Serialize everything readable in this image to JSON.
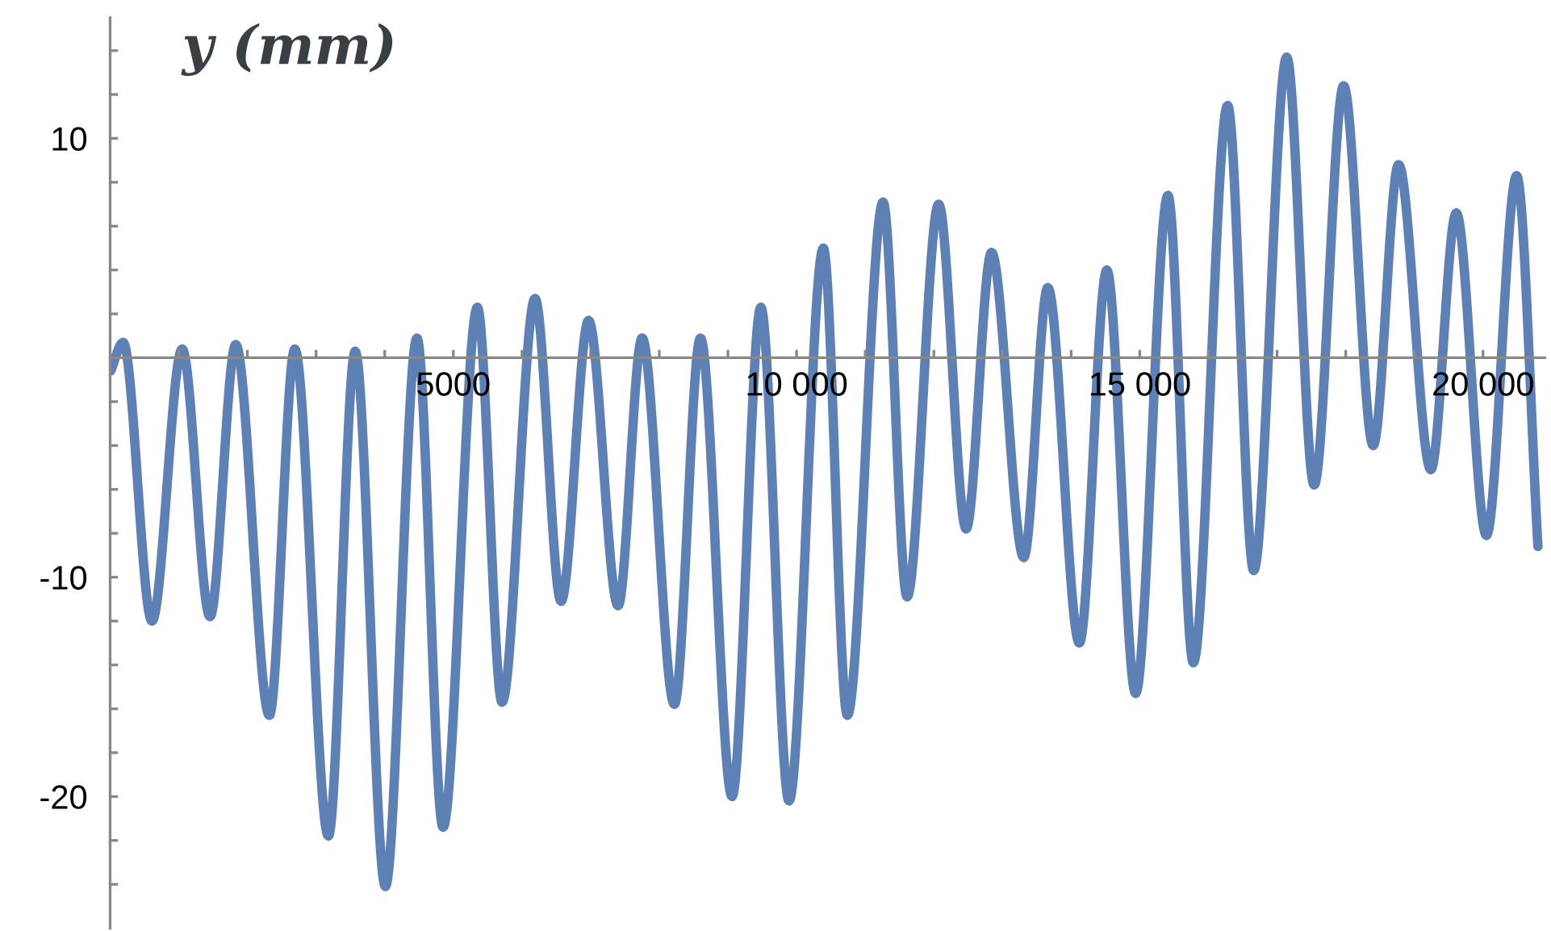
{
  "chart_data": {
    "type": "line",
    "ylabel": "y (mm)",
    "xlim": [
      0,
      20900
    ],
    "ylim": [
      -26,
      15.5
    ],
    "xticks": [
      {
        "value": 1000,
        "label": null
      },
      {
        "value": 2000,
        "label": null
      },
      {
        "value": 3000,
        "label": null
      },
      {
        "value": 4000,
        "label": null
      },
      5000,
      {
        "value": 6000,
        "label": null
      },
      {
        "value": 7000,
        "label": null
      },
      {
        "value": 8000,
        "label": null
      },
      {
        "value": 9000,
        "label": null
      },
      {
        "value": 10000,
        "label": "10 000"
      },
      {
        "value": 11000,
        "label": null
      },
      {
        "value": 12000,
        "label": null
      },
      {
        "value": 13000,
        "label": null
      },
      {
        "value": 14000,
        "label": null
      },
      {
        "value": 15000,
        "label": "15 000"
      },
      {
        "value": 16000,
        "label": null
      },
      {
        "value": 17000,
        "label": null
      },
      {
        "value": 18000,
        "label": null
      },
      {
        "value": 19000,
        "label": null
      },
      {
        "value": 20000,
        "label": "20 000"
      }
    ],
    "yticks": [
      {
        "value": -24,
        "label": null
      },
      {
        "value": -22,
        "label": null
      },
      -20,
      {
        "value": -18,
        "label": null
      },
      {
        "value": -16,
        "label": null
      },
      {
        "value": -14,
        "label": null
      },
      {
        "value": -12,
        "label": null
      },
      -10,
      {
        "value": -8,
        "label": null
      },
      {
        "value": -6,
        "label": null
      },
      {
        "value": -4,
        "label": null
      },
      {
        "value": -2,
        "label": null
      },
      {
        "value": 2,
        "label": null
      },
      {
        "value": 4,
        "label": null
      },
      {
        "value": 6,
        "label": null
      },
      {
        "value": 8,
        "label": null
      },
      10,
      {
        "value": 12,
        "label": null
      },
      {
        "value": 14,
        "label": null
      }
    ],
    "grid": false,
    "legend": false,
    "marker": "none",
    "line_style": "solid",
    "series": [
      {
        "color": "#5e81b5",
        "x": [
          8,
          190,
          610,
          1050,
          1455,
          1830,
          2320,
          2690,
          3180,
          3570,
          4010,
          4470,
          4850,
          5350,
          5710,
          6190,
          6570,
          6970,
          7400,
          7750,
          8220,
          8600,
          9060,
          9480,
          9890,
          10390,
          10740,
          11260,
          11610,
          12070,
          12470,
          12840,
          13310,
          13660,
          14120,
          14520,
          14940,
          15410,
          15780,
          16280,
          16660,
          17140,
          17540,
          17970,
          18400,
          18770,
          19240,
          19610,
          20050,
          20490,
          20800
        ],
        "values": [
          -0.6,
          0.7,
          -12.0,
          0.4,
          -11.8,
          0.6,
          -16.3,
          0.4,
          -21.8,
          0.3,
          -24.1,
          0.9,
          -21.4,
          2.3,
          -15.7,
          2.7,
          -11.1,
          1.7,
          -11.3,
          0.9,
          -15.8,
          0.9,
          -20.0,
          2.3,
          -20.2,
          5.0,
          -16.3,
          7.1,
          -10.9,
          7.0,
          -7.8,
          4.8,
          -9.1,
          3.2,
          -13.0,
          4.0,
          -15.3,
          7.4,
          -13.9,
          11.5,
          -9.7,
          13.7,
          -5.8,
          12.4,
          -4.0,
          8.8,
          -5.1,
          6.6,
          -8.1,
          8.3,
          -8.6
        ]
      }
    ]
  }
}
